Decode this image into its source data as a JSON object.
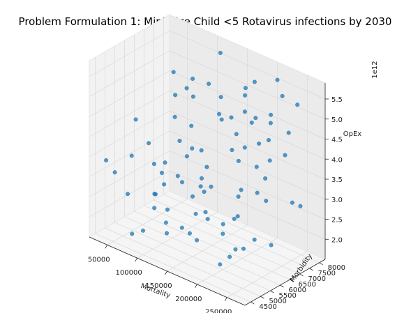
{
  "chart_data": {
    "type": "scatter",
    "title": "Problem Formulation 1: Minimize Child <5 Rotavirus infections by 2030",
    "xlabel": "Mortality",
    "ylabel": "Morbidity",
    "zlabel": "OpEx",
    "z_offset_label": "1e12",
    "xlim": [
      20000,
      280000
    ],
    "ylim": [
      4200,
      8300
    ],
    "zlim": [
      1.5,
      5.9
    ],
    "xticks": [
      50000,
      100000,
      150000,
      200000,
      250000
    ],
    "yticks": [
      4500,
      5000,
      5500,
      6000,
      6500,
      7000,
      7500,
      8000
    ],
    "zticks": [
      2.0,
      2.5,
      3.0,
      3.5,
      4.0,
      4.5,
      5.0,
      5.5
    ],
    "grid": true,
    "marker_color": "#1f77b4",
    "points": [
      [
        30000,
        5200,
        2.9
      ],
      [
        45000,
        5600,
        3.3
      ],
      [
        60000,
        6300,
        1.9
      ],
      [
        70000,
        6000,
        2.4
      ],
      [
        85000,
        7200,
        3.1
      ],
      [
        95000,
        5900,
        2.2
      ],
      [
        110000,
        6700,
        3.6
      ],
      [
        120000,
        5100,
        2.0
      ],
      [
        130000,
        7600,
        4.2
      ],
      [
        140000,
        6400,
        2.8
      ],
      [
        150000,
        5500,
        3.0
      ],
      [
        160000,
        7900,
        5.1
      ],
      [
        170000,
        6900,
        3.9
      ],
      [
        180000,
        4800,
        2.3
      ],
      [
        190000,
        7300,
        4.6
      ],
      [
        200000,
        6100,
        2.6
      ],
      [
        210000,
        8000,
        5.6
      ],
      [
        220000,
        5700,
        3.4
      ],
      [
        230000,
        7000,
        4.0
      ],
      [
        240000,
        6500,
        3.2
      ],
      [
        250000,
        7800,
        5.3
      ],
      [
        260000,
        5300,
        2.7
      ],
      [
        55000,
        7500,
        3.8
      ],
      [
        75000,
        4700,
        1.8
      ],
      [
        90000,
        6800,
        2.6
      ],
      [
        105000,
        7700,
        4.9
      ],
      [
        115000,
        5000,
        3.5
      ],
      [
        125000,
        6200,
        4.4
      ],
      [
        135000,
        4600,
        2.5
      ],
      [
        145000,
        7100,
        5.0
      ],
      [
        155000,
        5800,
        4.1
      ],
      [
        165000,
        6600,
        2.1
      ],
      [
        175000,
        5200,
        3.7
      ],
      [
        185000,
        7600,
        5.5
      ],
      [
        195000,
        4900,
        2.9
      ],
      [
        205000,
        6300,
        3.3
      ],
      [
        215000,
        7400,
        4.3
      ],
      [
        225000,
        5400,
        2.2
      ],
      [
        235000,
        6900,
        5.2
      ],
      [
        245000,
        5900,
        3.6
      ],
      [
        255000,
        7200,
        4.8
      ],
      [
        265000,
        6000,
        2.4
      ],
      [
        40000,
        6900,
        2.7
      ],
      [
        65000,
        7800,
        4.5
      ],
      [
        80000,
        5400,
        3.9
      ],
      [
        100000,
        4500,
        2.1
      ],
      [
        118000,
        7900,
        5.7
      ],
      [
        142000,
        5600,
        2.0
      ],
      [
        158000,
        6200,
        3.1
      ],
      [
        172000,
        7500,
        4.7
      ],
      [
        188000,
        5000,
        3.0
      ],
      [
        198000,
        6700,
        4.2
      ],
      [
        212000,
        5500,
        1.9
      ],
      [
        228000,
        7700,
        5.4
      ],
      [
        242000,
        6400,
        3.8
      ],
      [
        258000,
        4800,
        2.6
      ],
      [
        35000,
        4600,
        3.4
      ],
      [
        50000,
        7100,
        2.2
      ],
      [
        68000,
        6600,
        3.0
      ],
      [
        88000,
        7400,
        5.0
      ],
      [
        98000,
        5200,
        2.8
      ],
      [
        112000,
        6000,
        4.0
      ],
      [
        128000,
        6900,
        3.2
      ],
      [
        138000,
        5900,
        5.3
      ],
      [
        152000,
        4900,
        2.4
      ],
      [
        168000,
        7300,
        3.5
      ],
      [
        182000,
        6500,
        4.9
      ],
      [
        194000,
        5700,
        2.3
      ],
      [
        208000,
        7000,
        3.7
      ],
      [
        218000,
        6100,
        5.8
      ],
      [
        232000,
        5300,
        3.1
      ],
      [
        248000,
        7600,
        2.9
      ],
      [
        262000,
        6800,
        4.4
      ],
      [
        42000,
        5900,
        4.1
      ],
      [
        58000,
        5000,
        2.6
      ],
      [
        72000,
        7000,
        4.6
      ],
      [
        92000,
        6300,
        5.5
      ],
      [
        108000,
        7200,
        2.5
      ],
      [
        122000,
        5600,
        3.3
      ],
      [
        148000,
        7800,
        3.9
      ],
      [
        162000,
        5300,
        2.7
      ],
      [
        178000,
        6000,
        5.1
      ],
      [
        202000,
        7900,
        4.5
      ],
      [
        222000,
        4700,
        2.0
      ],
      [
        238000,
        6200,
        4.7
      ],
      [
        252000,
        5600,
        5.6
      ],
      [
        268000,
        7400,
        3.0
      ]
    ]
  }
}
